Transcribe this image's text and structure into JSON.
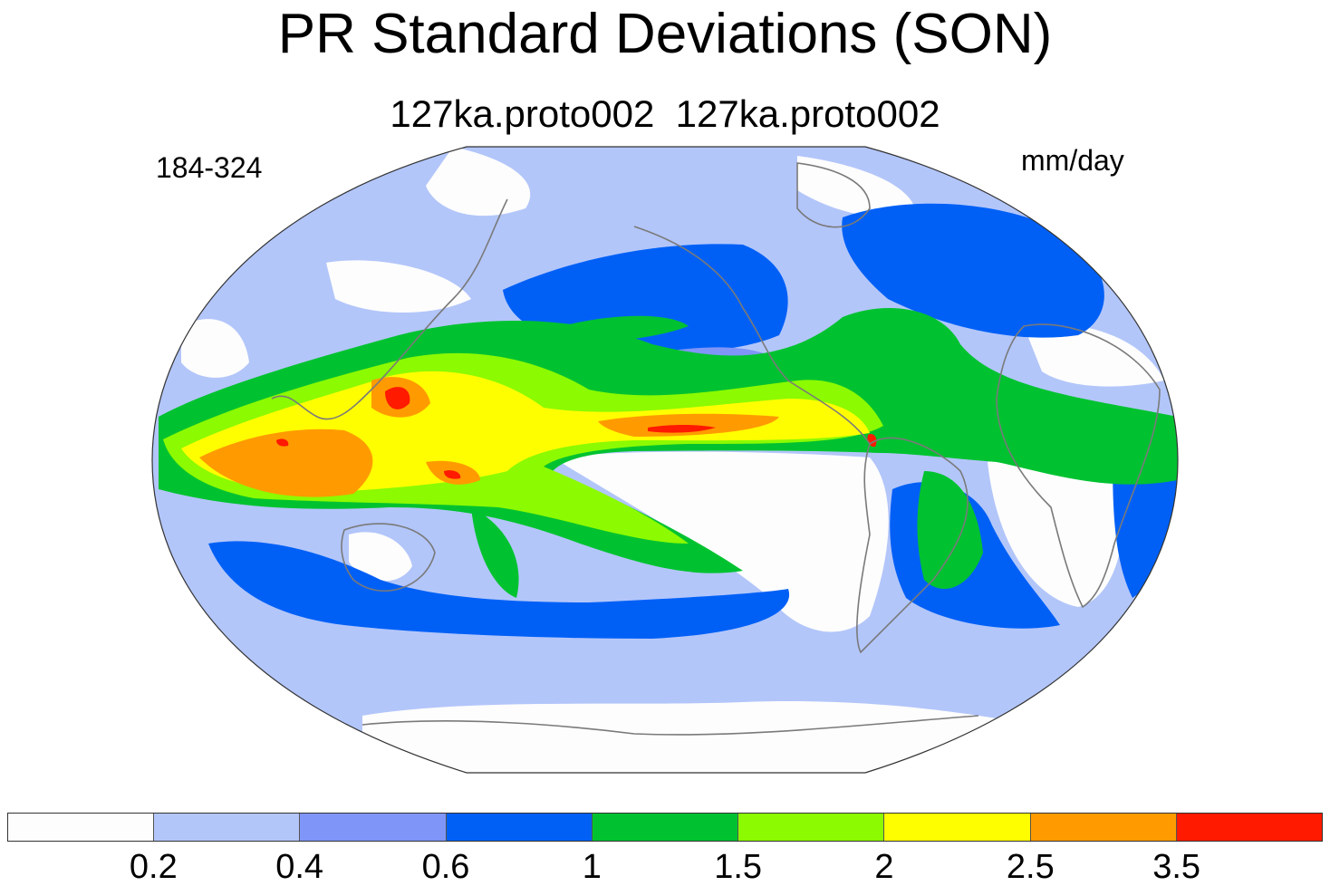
{
  "title": "PR Standard Deviations (SON)",
  "subtitle": "127ka.proto002  127ka.proto002",
  "left_label": "184-324",
  "units_label": "mm/day",
  "colorbar": {
    "colors": [
      "#fdfdfd",
      "#b3c6fa",
      "#7f95f7",
      "#0060f6",
      "#00c230",
      "#8cfa00",
      "#fffe00",
      "#ff9b00",
      "#ff1a00"
    ],
    "labels": [
      "0.2",
      "0.4",
      "0.6",
      "1",
      "1.5",
      "2",
      "2.5",
      "3.5"
    ]
  },
  "map": {
    "projection": "robinson",
    "background_color": "#b3c6fa",
    "outline_color": "#333333",
    "coastline_color": "#7a7a7a"
  }
}
